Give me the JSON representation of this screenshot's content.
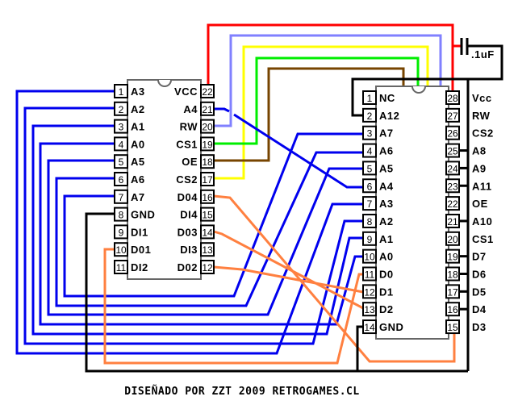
{
  "colors": {
    "vcc": "#ff0000",
    "rw": "#8080ff",
    "cs2": "#ffff00",
    "cs1": "#00ee00",
    "oe": "#774400",
    "address": "#0000ee",
    "data": "#ff8040",
    "ground": "#000000"
  },
  "chip1": {
    "left": [
      {
        "n": "1",
        "label": "A3"
      },
      {
        "n": "2",
        "label": "A2"
      },
      {
        "n": "3",
        "label": "A1"
      },
      {
        "n": "4",
        "label": "A0"
      },
      {
        "n": "5",
        "label": "A5"
      },
      {
        "n": "6",
        "label": "A6"
      },
      {
        "n": "7",
        "label": "A7"
      },
      {
        "n": "8",
        "label": "GND"
      },
      {
        "n": "9",
        "label": "DI1"
      },
      {
        "n": "10",
        "label": "D01"
      },
      {
        "n": "11",
        "label": "DI2"
      }
    ],
    "right": [
      {
        "n": "22",
        "label": "VCC"
      },
      {
        "n": "21",
        "label": "A4"
      },
      {
        "n": "20",
        "label": "RW"
      },
      {
        "n": "19",
        "label": "CS1"
      },
      {
        "n": "18",
        "label": "OE"
      },
      {
        "n": "17",
        "label": "CS2"
      },
      {
        "n": "16",
        "label": "D04"
      },
      {
        "n": "15",
        "label": "DI4"
      },
      {
        "n": "14",
        "label": "D03"
      },
      {
        "n": "13",
        "label": "DI3"
      },
      {
        "n": "12",
        "label": "D02"
      }
    ]
  },
  "chip2": {
    "left": [
      {
        "n": "1",
        "label": "NC"
      },
      {
        "n": "2",
        "label": "A12"
      },
      {
        "n": "3",
        "label": "A7"
      },
      {
        "n": "4",
        "label": "A6"
      },
      {
        "n": "5",
        "label": "A5"
      },
      {
        "n": "6",
        "label": "A4"
      },
      {
        "n": "7",
        "label": "A3"
      },
      {
        "n": "8",
        "label": "A2"
      },
      {
        "n": "9",
        "label": "A1"
      },
      {
        "n": "10",
        "label": "A0"
      },
      {
        "n": "11",
        "label": "D0"
      },
      {
        "n": "12",
        "label": "D1"
      },
      {
        "n": "13",
        "label": "D2"
      },
      {
        "n": "14",
        "label": "GND"
      }
    ],
    "right": [
      {
        "n": "28",
        "label": "Vcc"
      },
      {
        "n": "27",
        "label": "RW"
      },
      {
        "n": "26",
        "label": "CS2"
      },
      {
        "n": "25",
        "label": "A8"
      },
      {
        "n": "24",
        "label": "A9"
      },
      {
        "n": "23",
        "label": "A11"
      },
      {
        "n": "22",
        "label": "OE"
      },
      {
        "n": "21",
        "label": "A10"
      },
      {
        "n": "20",
        "label": "CS1"
      },
      {
        "n": "19",
        "label": "D7"
      },
      {
        "n": "18",
        "label": "D6"
      },
      {
        "n": "17",
        "label": "D5"
      },
      {
        "n": "16",
        "label": "D4"
      },
      {
        "n": "15",
        "label": "D3"
      }
    ]
  },
  "capacitor": {
    "label": ".1uF"
  },
  "footer": "DISEÑADO POR ZZT 2009 RETROGAMES.CL"
}
